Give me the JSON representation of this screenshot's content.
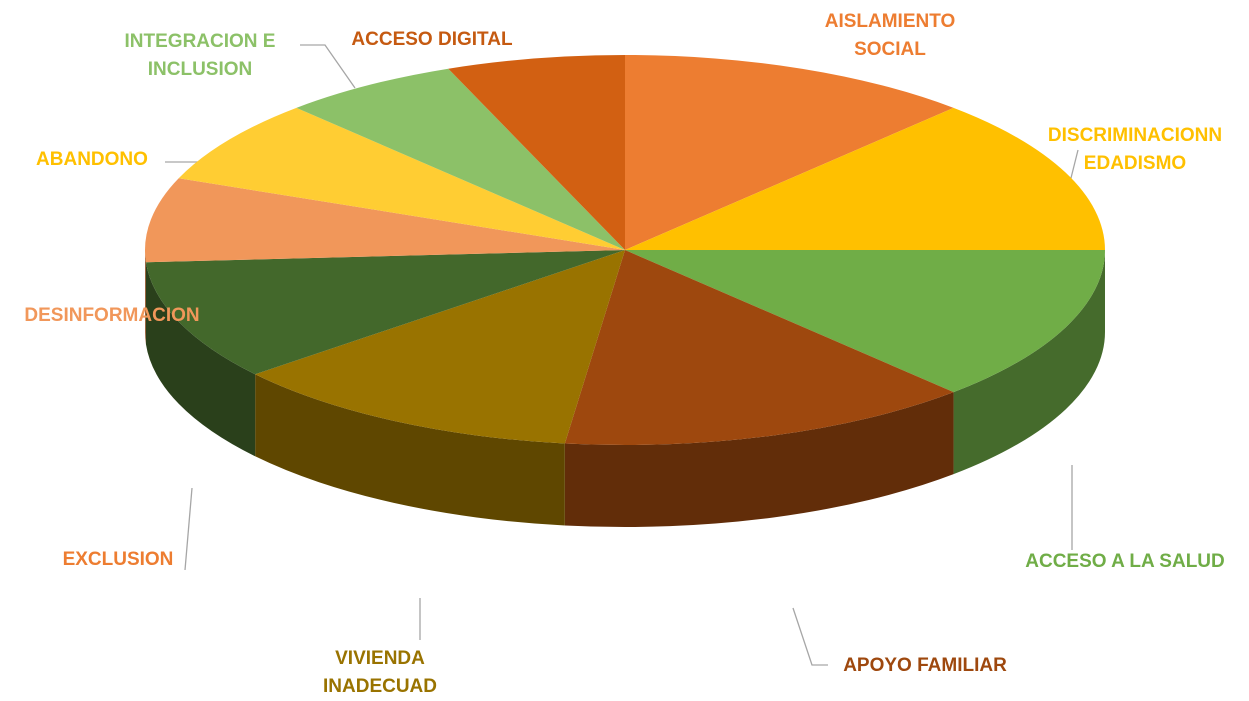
{
  "chart_data": {
    "type": "pie3d",
    "categories": [
      "AISLAMIENTO SOCIAL",
      "DISCRIMINACIONN EDADISMO",
      "ACCESO A LA SALUD",
      "APOYO FAMILIAR",
      "VIVIENDA INADECUAD",
      "EXCLUSION",
      "DESINFORMACION",
      "ABANDONO",
      "INTEGRACION E INCLUSION",
      "ACCESO DIGITAL"
    ],
    "values": [
      12,
      13,
      13,
      14,
      12,
      10,
      7,
      7,
      6,
      6
    ],
    "colors": [
      "#ED7D31",
      "#FFC000",
      "#70AD47",
      "#9E480E",
      "#997300",
      "#43682B",
      "#F1975A",
      "#FFCD33",
      "#8CC168",
      "#D26012"
    ],
    "label_colors": [
      "#ED7D31",
      "#FFC000",
      "#70AD47",
      "#9E480E",
      "#997300",
      "#ED7D31",
      "#F1975A",
      "#FFC000",
      "#8CC168",
      "#C55A11"
    ]
  }
}
